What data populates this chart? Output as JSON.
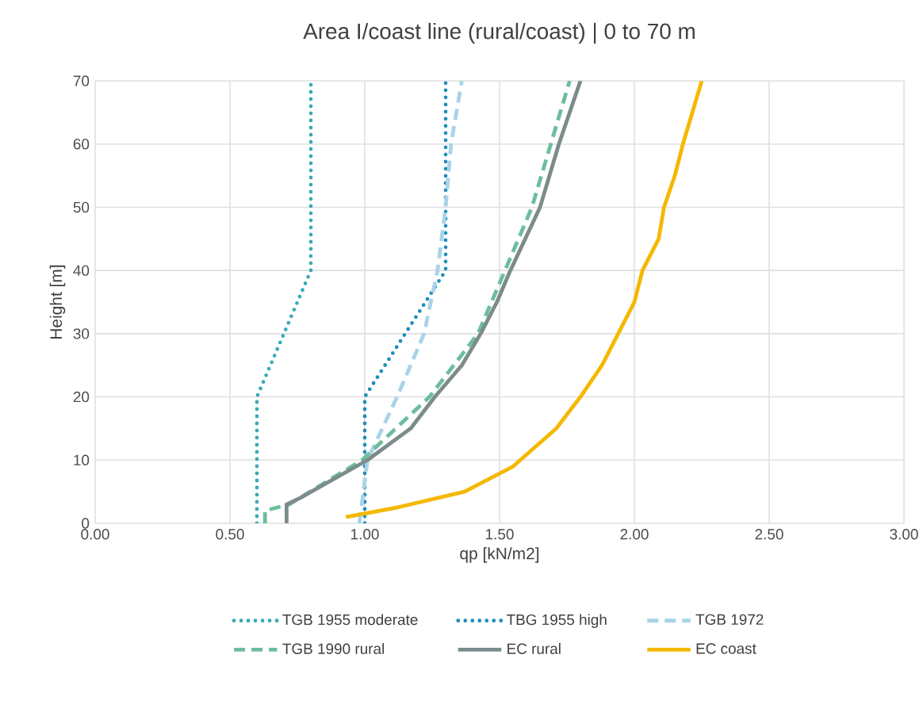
{
  "chart_data": {
    "type": "line",
    "title": "Area I/coast line (rural/coast) | 0 to 70 m",
    "xlabel": "qp [kN/m2]",
    "ylabel": "Height [m]",
    "xlim": [
      0,
      3
    ],
    "ylim": [
      0,
      70
    ],
    "xticks": [
      {
        "value": 0,
        "label": "0.00"
      },
      {
        "value": 0.5,
        "label": "0.50"
      },
      {
        "value": 1,
        "label": "1.00"
      },
      {
        "value": 1.5,
        "label": "1.50"
      },
      {
        "value": 2,
        "label": "2.00"
      },
      {
        "value": 2.5,
        "label": "2.50"
      },
      {
        "value": 3,
        "label": "3.00"
      }
    ],
    "yticks": [
      0,
      10,
      20,
      30,
      40,
      50,
      60,
      70
    ],
    "grid": true,
    "legend": "bottom",
    "series": [
      {
        "name": "TGB 1955 moderate",
        "color": "#3aa9b9",
        "line_style": "dotted",
        "x": [
          0.6,
          0.6,
          0.8,
          0.8
        ],
        "values": [
          0,
          20,
          40,
          70
        ]
      },
      {
        "name": "TBG 1955 high",
        "color": "#1f8dbd",
        "line_style": "dotted",
        "x": [
          1.0,
          1.0,
          1.3,
          1.3
        ],
        "values": [
          0,
          20,
          40,
          70
        ]
      },
      {
        "name": "TGB 1972",
        "color": "#a9d3e8",
        "line_style": "dashed",
        "x": [
          0.98,
          1.01,
          1.12,
          1.22,
          1.27,
          1.3,
          1.32,
          1.36
        ],
        "values": [
          0,
          10,
          20,
          30,
          40,
          50,
          60,
          70
        ]
      },
      {
        "name": "TGB 1990 rural",
        "color": "#6dbd9e",
        "line_style": "dashed",
        "x": [
          0.63,
          0.63,
          0.72,
          0.99,
          1.24,
          1.42,
          1.52,
          1.62,
          1.69,
          1.76
        ],
        "values": [
          0,
          2,
          3,
          10,
          20,
          30,
          40,
          50,
          60,
          70
        ]
      },
      {
        "name": "EC rural",
        "color": "#7c8b8b",
        "line_style": "solid",
        "x": [
          0.71,
          0.71,
          0.76,
          1.01,
          1.17,
          1.26,
          1.36,
          1.43,
          1.49,
          1.54,
          1.65,
          1.72,
          1.8
        ],
        "values": [
          0,
          3,
          4,
          10,
          15,
          20,
          25,
          30,
          35,
          40,
          50,
          60,
          70
        ]
      },
      {
        "name": "EC coast",
        "color": "#f5b800",
        "line_style": "solid",
        "x": [
          0.93,
          1.12,
          1.37,
          1.55,
          1.71,
          1.8,
          1.88,
          1.94,
          2.0,
          2.03,
          2.09,
          2.11,
          2.15,
          2.18,
          2.25
        ],
        "values": [
          1,
          2.5,
          5,
          9,
          15,
          20,
          25,
          30,
          35,
          40,
          45,
          50,
          55,
          60,
          70
        ]
      }
    ]
  }
}
